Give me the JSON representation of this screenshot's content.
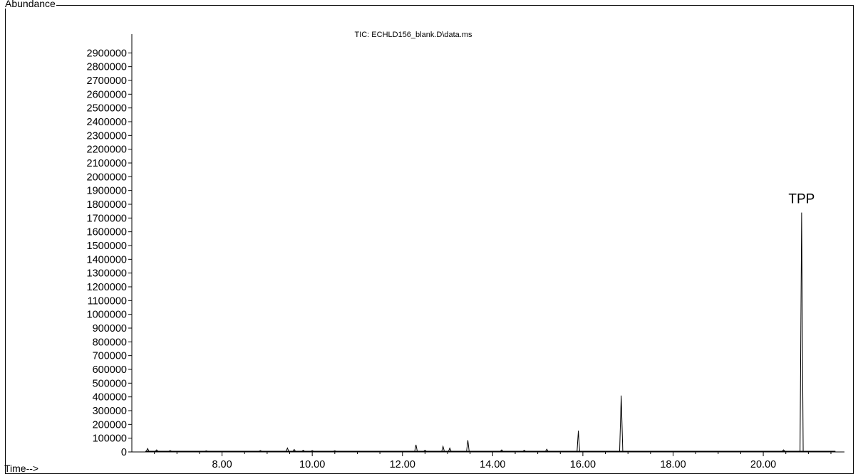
{
  "figure": {
    "y_axis_title": "Abundance",
    "x_axis_title": "Time-->",
    "header_text": "",
    "annotation": "TPP"
  },
  "chart_data": {
    "type": "line",
    "title": "TIC: ECHLD156_blank.D\\data.ms",
    "xlabel": "Time-->",
    "ylabel": "Abundance",
    "xlim": [
      6.0,
      21.8
    ],
    "ylim": [
      0,
      3000000
    ],
    "grid": false,
    "legend": "none",
    "line_color": "#000000",
    "x_ticks": [
      8.0,
      10.0,
      12.0,
      14.0,
      16.0,
      18.0,
      20.0
    ],
    "x_tick_labels": [
      "8.00",
      "10.00",
      "12.00",
      "14.00",
      "16.00",
      "18.00",
      "20.00"
    ],
    "y_ticks": [
      0,
      100000,
      200000,
      300000,
      400000,
      500000,
      600000,
      700000,
      800000,
      900000,
      1000000,
      1100000,
      1200000,
      1300000,
      1400000,
      1500000,
      1600000,
      1700000,
      1800000,
      1900000,
      2000000,
      2100000,
      2200000,
      2300000,
      2400000,
      2500000,
      2600000,
      2700000,
      2800000,
      2900000
    ],
    "y_tick_labels": [
      "0",
      "100000",
      "200000",
      "300000",
      "400000",
      "500000",
      "600000",
      "700000",
      "800000",
      "900000",
      "1000000",
      "1100000",
      "1200000",
      "1300000",
      "1400000",
      "1500000",
      "1600000",
      "1700000",
      "1800000",
      "1900000",
      "2000000",
      "2100000",
      "2200000",
      "2300000",
      "2400000",
      "2500000",
      "2600000",
      "2700000",
      "2800000",
      "2900000"
    ],
    "baseline_start": 6.3,
    "baseline_end": 21.6,
    "peaks": [
      {
        "x": 6.35,
        "y": 25000
      },
      {
        "x": 6.55,
        "y": 15000
      },
      {
        "x": 6.85,
        "y": 10000
      },
      {
        "x": 7.65,
        "y": 8000
      },
      {
        "x": 8.85,
        "y": 10000
      },
      {
        "x": 9.45,
        "y": 28000
      },
      {
        "x": 9.6,
        "y": 18000
      },
      {
        "x": 9.8,
        "y": 12000
      },
      {
        "x": 10.0,
        "y": 10000
      },
      {
        "x": 10.5,
        "y": 9000
      },
      {
        "x": 12.3,
        "y": 52000
      },
      {
        "x": 12.5,
        "y": 12000
      },
      {
        "x": 12.9,
        "y": 40000
      },
      {
        "x": 13.05,
        "y": 28000
      },
      {
        "x": 13.45,
        "y": 85000
      },
      {
        "x": 14.2,
        "y": 15000
      },
      {
        "x": 14.7,
        "y": 12000
      },
      {
        "x": 15.2,
        "y": 20000
      },
      {
        "x": 15.9,
        "y": 155000
      },
      {
        "x": 16.85,
        "y": 410000
      },
      {
        "x": 20.45,
        "y": 15000
      },
      {
        "x": 20.85,
        "y": 1740000
      }
    ],
    "annotations": [
      {
        "text": "TPP",
        "x": 20.85,
        "y": 1850000
      }
    ]
  }
}
